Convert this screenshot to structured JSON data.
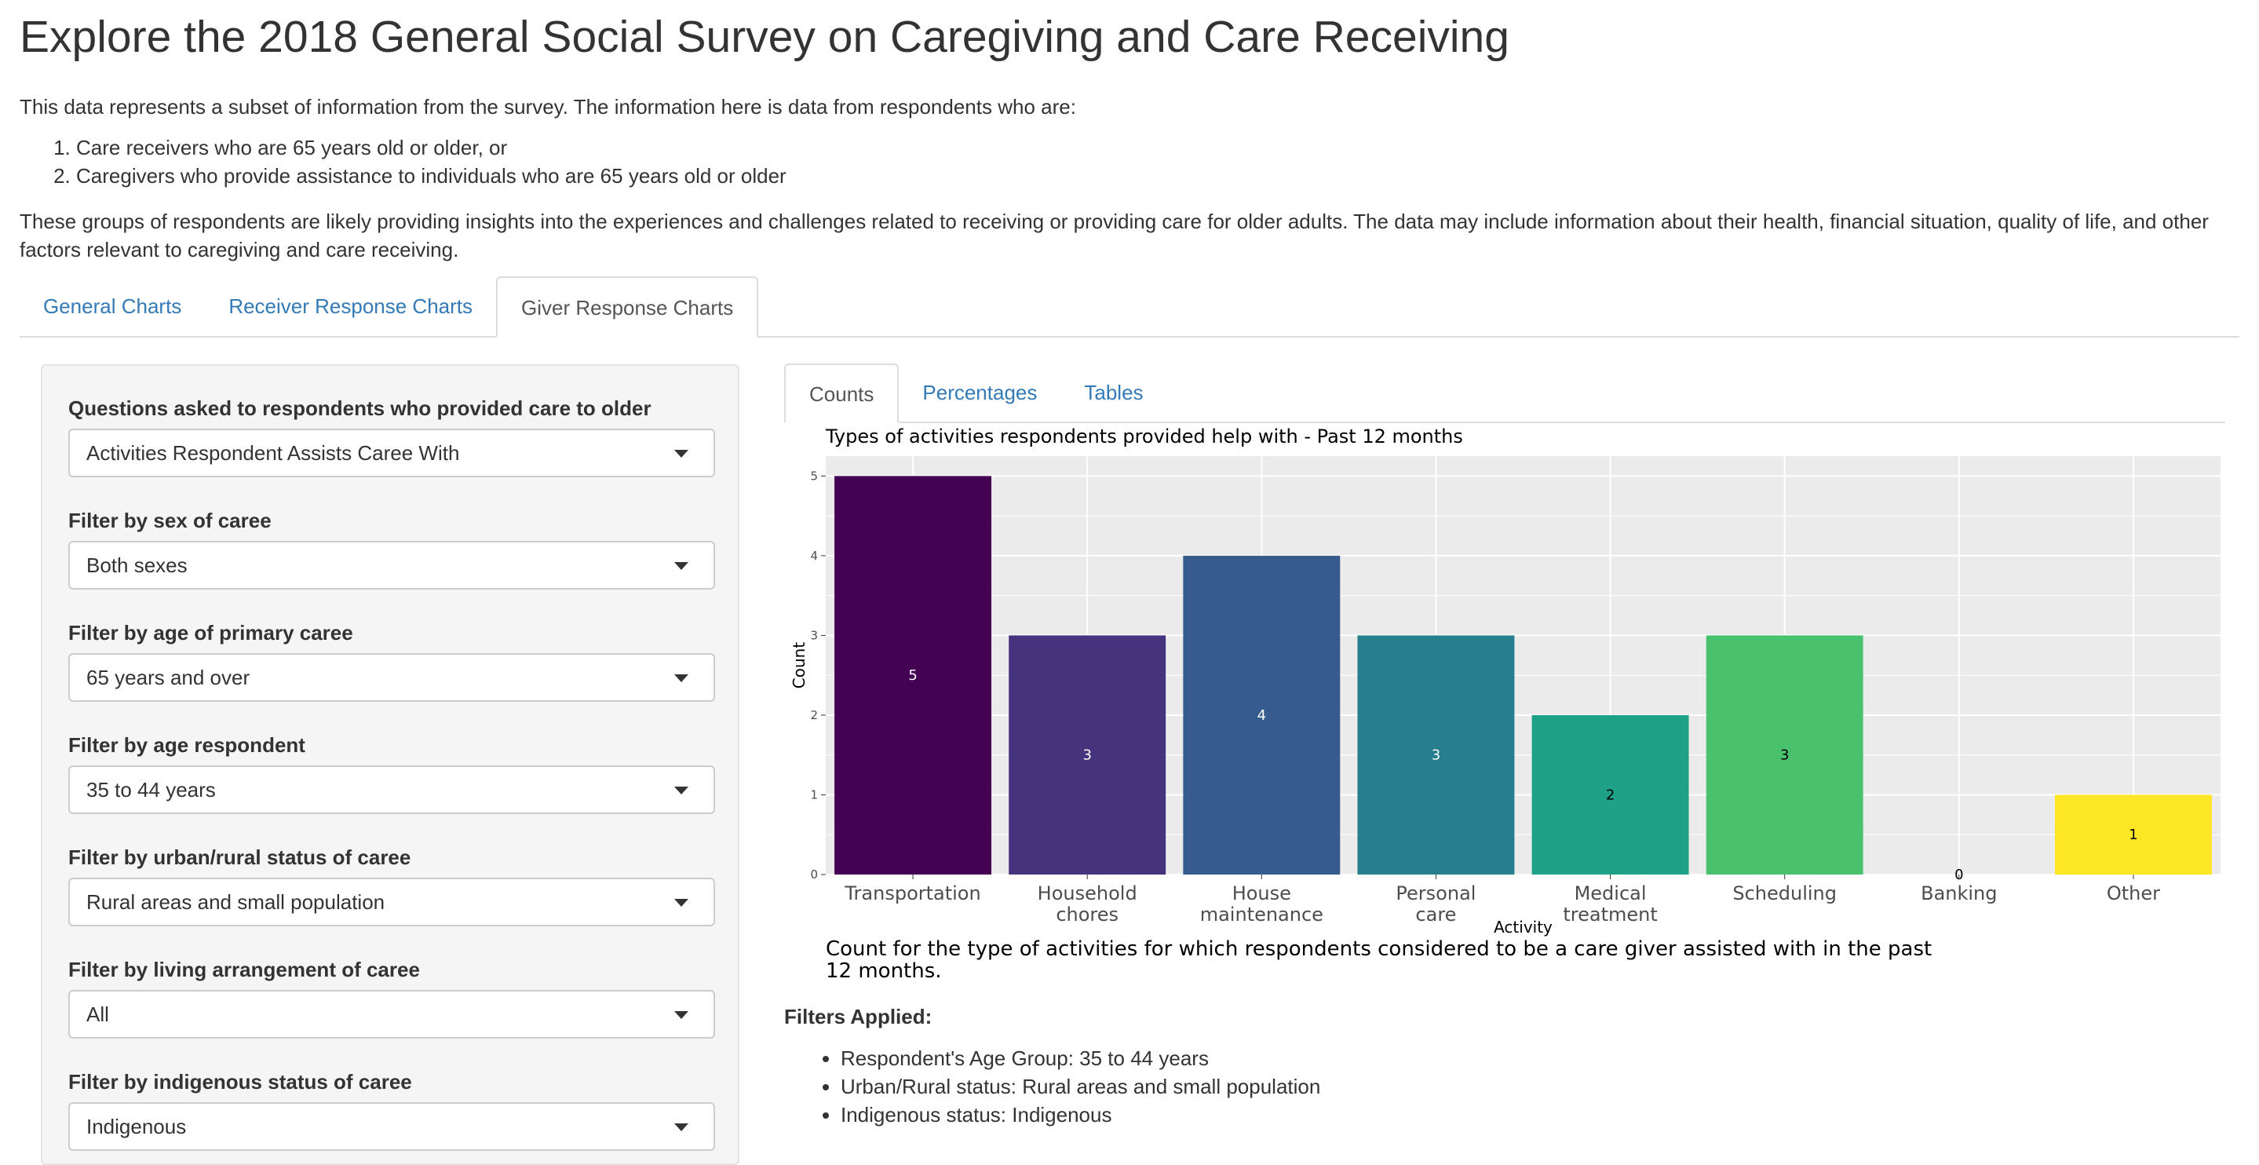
{
  "title": "Explore the 2018 General Social Survey on Caregiving and Care Receiving",
  "intro": "This data represents a subset of information from the survey. The information here is data from respondents who are:",
  "groups": [
    "Care receivers who are 65 years old or older, or",
    "Caregivers who provide assistance to individuals who are 65 years old or older"
  ],
  "intro2": "These groups of respondents are likely providing insights into the experiences and challenges related to receiving or providing care for older adults. The data may include information about their health, financial situation, quality of life, and other factors relevant to caregiving and care receiving.",
  "main_tabs": [
    {
      "label": "General Charts",
      "active": false
    },
    {
      "label": "Receiver Response Charts",
      "active": false
    },
    {
      "label": "Giver Response Charts",
      "active": true
    }
  ],
  "sidebar": {
    "filters": [
      {
        "label": "Questions asked to respondents who provided care to older adults:",
        "value": "Activities Respondent Assists Caree With"
      },
      {
        "label": "Filter by sex of caree",
        "value": "Both sexes"
      },
      {
        "label": "Filter by age of primary caree",
        "value": "65 years and over"
      },
      {
        "label": "Filter by age respondent",
        "value": "35 to 44 years"
      },
      {
        "label": "Filter by urban/rural status of caree",
        "value": "Rural areas and small population"
      },
      {
        "label": "Filter by living arrangement of caree",
        "value": "All"
      },
      {
        "label": "Filter by indigenous status of caree",
        "value": "Indigenous"
      }
    ]
  },
  "sub_tabs": [
    {
      "label": "Counts",
      "active": true
    },
    {
      "label": "Percentages",
      "active": false
    },
    {
      "label": "Tables",
      "active": false
    }
  ],
  "chart_data": {
    "type": "bar",
    "title": "Types of activities respondents provided help with - Past 12 months",
    "xlabel": "Activity",
    "ylabel": "Count",
    "categories": [
      "Transportation",
      "Household chores",
      "House maintenance",
      "Personal care",
      "Medical treatment",
      "Scheduling",
      "Banking",
      "Other"
    ],
    "category_lines": [
      [
        "Transportation"
      ],
      [
        "Household",
        "chores"
      ],
      [
        "House",
        "maintenance"
      ],
      [
        "Personal",
        "care"
      ],
      [
        "Medical",
        "treatment"
      ],
      [
        "Scheduling"
      ],
      [
        "Banking"
      ],
      [
        "Other"
      ]
    ],
    "values": [
      5,
      3,
      4,
      3,
      2,
      3,
      0,
      1
    ],
    "data_labels": [
      "5",
      "3",
      "4",
      "3",
      "2",
      "3",
      "0",
      "1"
    ],
    "yticks": [
      "0",
      "1",
      "2",
      "3",
      "4",
      "5"
    ],
    "ylim": [
      0,
      5.25
    ],
    "colors": [
      "#440154",
      "#46337E",
      "#365C8D",
      "#277F8E",
      "#1FA187",
      "#4AC16D",
      "#9FDA3A",
      "#FDE725"
    ],
    "label_colors": [
      "#ffffff",
      "#ffffff",
      "#ffffff",
      "#ffffff",
      "#000000",
      "#000000",
      "#000000",
      "#000000"
    ],
    "grid": true,
    "legend": "none"
  },
  "caption": "Count for the type of activities for which respondents considered to be a care giver assisted with in the past 12 months.",
  "filters_applied": {
    "title": "Filters Applied:",
    "items": [
      "Respondent's Age Group: 35 to 44 years",
      "Urban/Rural status: Rural areas and small population",
      "Indigenous status: Indigenous"
    ]
  }
}
